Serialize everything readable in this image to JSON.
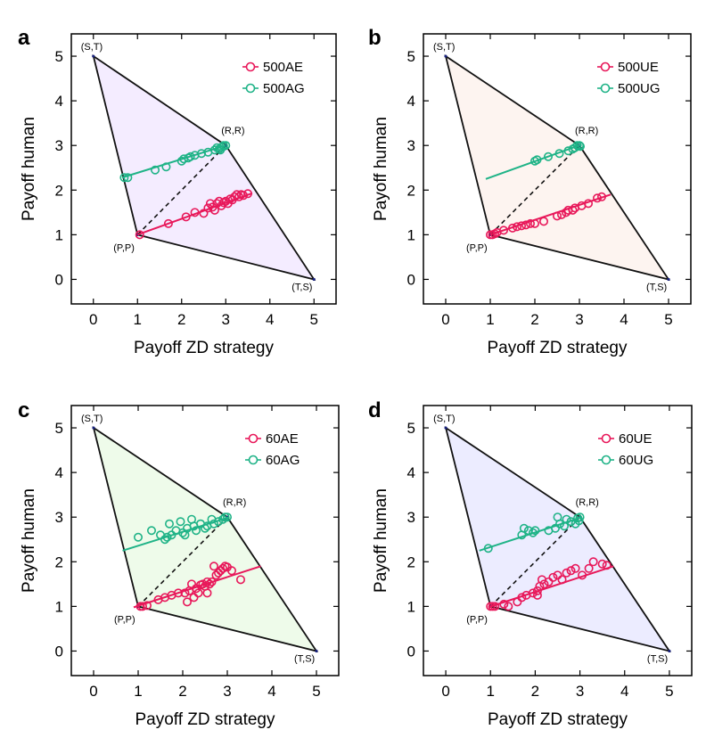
{
  "colors": {
    "ae_series": "#e8185a",
    "ag_series": "#1fb387",
    "boundary": "#111111",
    "fill_a": "#f4ecff",
    "fill_b": "#fdf4f0",
    "fill_c": "#eefbea",
    "fill_d": "#ececff"
  },
  "chart_data": [
    {
      "type": "scatter",
      "panel": "a",
      "xlabel": "Payoff ZD strategy",
      "ylabel": "Payoff human",
      "xlim": [
        -0.5,
        5.5
      ],
      "ylim": [
        -0.55,
        5.5
      ],
      "xticks": [
        0,
        1,
        2,
        3,
        4,
        5
      ],
      "yticks": [
        0,
        1,
        2,
        3,
        4,
        5
      ],
      "legend_position": "top-right",
      "fill_color": "#f4ecff",
      "vertices": [
        {
          "label": "(S,T)",
          "x": 0,
          "y": 5
        },
        {
          "label": "(R,R)",
          "x": 3,
          "y": 3
        },
        {
          "label": "(T,S)",
          "x": 5,
          "y": 0
        },
        {
          "label": "(P,P)",
          "x": 1,
          "y": 1
        }
      ],
      "series": [
        {
          "name": "500AE",
          "color": "#e8185a",
          "line": [
            [
              1.0,
              1.0
            ],
            [
              3.6,
              1.93
            ]
          ],
          "points": [
            [
              1.05,
              1.0
            ],
            [
              1.7,
              1.25
            ],
            [
              2.1,
              1.4
            ],
            [
              2.3,
              1.5
            ],
            [
              2.5,
              1.48
            ],
            [
              2.6,
              1.6
            ],
            [
              2.7,
              1.62
            ],
            [
              2.8,
              1.7
            ],
            [
              2.9,
              1.65
            ],
            [
              2.95,
              1.72
            ],
            [
              3.0,
              1.75
            ],
            [
              3.1,
              1.8
            ],
            [
              3.15,
              1.78
            ],
            [
              3.2,
              1.85
            ],
            [
              3.3,
              1.85
            ],
            [
              3.35,
              1.9
            ],
            [
              3.4,
              1.88
            ],
            [
              3.5,
              1.92
            ],
            [
              2.75,
              1.55
            ],
            [
              3.05,
              1.7
            ],
            [
              2.85,
              1.75
            ],
            [
              3.25,
              1.9
            ],
            [
              2.65,
              1.7
            ]
          ]
        },
        {
          "name": "500AG",
          "color": "#1fb387",
          "line": [
            [
              0.65,
              2.28
            ],
            [
              3.0,
              3.0
            ]
          ],
          "points": [
            [
              0.7,
              2.28
            ],
            [
              0.78,
              2.28
            ],
            [
              1.4,
              2.45
            ],
            [
              1.65,
              2.52
            ],
            [
              2.0,
              2.65
            ],
            [
              2.05,
              2.7
            ],
            [
              2.15,
              2.72
            ],
            [
              2.3,
              2.78
            ],
            [
              2.45,
              2.82
            ],
            [
              2.6,
              2.85
            ],
            [
              2.75,
              2.9
            ],
            [
              2.8,
              2.95
            ],
            [
              2.85,
              2.92
            ],
            [
              2.9,
              2.96
            ],
            [
              2.95,
              3.0
            ],
            [
              3.0,
              3.0
            ],
            [
              2.95,
              2.98
            ],
            [
              2.88,
              2.9
            ],
            [
              2.2,
              2.75
            ]
          ]
        }
      ]
    },
    {
      "type": "scatter",
      "panel": "b",
      "xlabel": "Payoff ZD strategy",
      "ylabel": "Payoff human",
      "xlim": [
        -0.5,
        5.5
      ],
      "ylim": [
        -0.55,
        5.5
      ],
      "xticks": [
        0,
        1,
        2,
        3,
        4,
        5
      ],
      "yticks": [
        0,
        1,
        2,
        3,
        4,
        5
      ],
      "legend_position": "top-right",
      "fill_color": "#fdf4f0",
      "vertices": [
        {
          "label": "(S,T)",
          "x": 0,
          "y": 5
        },
        {
          "label": "(R,R)",
          "x": 3,
          "y": 3
        },
        {
          "label": "(T,S)",
          "x": 5,
          "y": 0
        },
        {
          "label": "(P,P)",
          "x": 1,
          "y": 1
        }
      ],
      "series": [
        {
          "name": "500UE",
          "color": "#e8185a",
          "line": [
            [
              1.0,
              1.0
            ],
            [
              3.7,
              1.9
            ]
          ],
          "points": [
            [
              1.0,
              1.0
            ],
            [
              1.05,
              1.0
            ],
            [
              1.1,
              1.02
            ],
            [
              1.15,
              1.05
            ],
            [
              1.3,
              1.1
            ],
            [
              1.5,
              1.15
            ],
            [
              1.6,
              1.18
            ],
            [
              1.7,
              1.2
            ],
            [
              1.8,
              1.22
            ],
            [
              1.9,
              1.25
            ],
            [
              2.0,
              1.25
            ],
            [
              2.2,
              1.3
            ],
            [
              2.5,
              1.42
            ],
            [
              2.6,
              1.45
            ],
            [
              2.7,
              1.5
            ],
            [
              2.75,
              1.55
            ],
            [
              2.85,
              1.55
            ],
            [
              2.9,
              1.6
            ],
            [
              3.05,
              1.65
            ],
            [
              3.2,
              1.7
            ],
            [
              3.5,
              1.85
            ],
            [
              3.4,
              1.82
            ]
          ]
        },
        {
          "name": "500UG",
          "color": "#1fb387",
          "line": [
            [
              0.9,
              2.25
            ],
            [
              3.05,
              3.02
            ]
          ],
          "points": [
            [
              2.0,
              2.65
            ],
            [
              2.05,
              2.68
            ],
            [
              2.3,
              2.75
            ],
            [
              2.55,
              2.82
            ],
            [
              2.75,
              2.88
            ],
            [
              2.85,
              2.92
            ],
            [
              2.9,
              2.95
            ],
            [
              2.95,
              3.0
            ],
            [
              3.0,
              3.0
            ],
            [
              3.02,
              2.98
            ]
          ]
        }
      ]
    },
    {
      "type": "scatter",
      "panel": "c",
      "xlabel": "Payoff ZD strategy",
      "ylabel": "Payoff human",
      "xlim": [
        -0.5,
        5.5
      ],
      "ylim": [
        -0.55,
        5.5
      ],
      "xticks": [
        0,
        1,
        2,
        3,
        4,
        5
      ],
      "yticks": [
        0,
        1,
        2,
        3,
        4,
        5
      ],
      "legend_position": "top-right",
      "fill_color": "#eefbea",
      "vertices": [
        {
          "label": "(S,T)",
          "x": 0,
          "y": 5
        },
        {
          "label": "(R,R)",
          "x": 3,
          "y": 3
        },
        {
          "label": "(T,S)",
          "x": 5,
          "y": 0
        },
        {
          "label": "(P,P)",
          "x": 1,
          "y": 1
        }
      ],
      "series": [
        {
          "name": "60AE",
          "color": "#e8185a",
          "line": [
            [
              0.9,
              0.98
            ],
            [
              3.75,
              1.9
            ]
          ],
          "points": [
            [
              1.05,
              1.0
            ],
            [
              1.1,
              1.0
            ],
            [
              1.2,
              1.02
            ],
            [
              1.45,
              1.15
            ],
            [
              1.6,
              1.2
            ],
            [
              1.75,
              1.25
            ],
            [
              1.9,
              1.3
            ],
            [
              2.05,
              1.3
            ],
            [
              2.1,
              1.1
            ],
            [
              2.15,
              1.35
            ],
            [
              2.25,
              1.2
            ],
            [
              2.3,
              1.4
            ],
            [
              2.35,
              1.3
            ],
            [
              2.4,
              1.48
            ],
            [
              2.45,
              1.5
            ],
            [
              2.5,
              1.45
            ],
            [
              2.55,
              1.55
            ],
            [
              2.6,
              1.5
            ],
            [
              2.65,
              1.55
            ],
            [
              2.7,
              1.9
            ],
            [
              2.75,
              1.7
            ],
            [
              2.8,
              1.75
            ],
            [
              2.85,
              1.8
            ],
            [
              2.9,
              1.85
            ],
            [
              2.95,
              1.9
            ],
            [
              3.0,
              1.88
            ],
            [
              3.1,
              1.8
            ],
            [
              3.3,
              1.6
            ],
            [
              2.2,
              1.5
            ],
            [
              2.55,
              1.3
            ]
          ]
        },
        {
          "name": "60AG",
          "color": "#1fb387",
          "line": [
            [
              0.65,
              2.25
            ],
            [
              3.05,
              3.0
            ]
          ],
          "points": [
            [
              1.0,
              2.55
            ],
            [
              1.3,
              2.7
            ],
            [
              1.5,
              2.6
            ],
            [
              1.6,
              2.5
            ],
            [
              1.7,
              2.85
            ],
            [
              1.75,
              2.6
            ],
            [
              1.85,
              2.7
            ],
            [
              1.95,
              2.9
            ],
            [
              2.0,
              2.65
            ],
            [
              2.1,
              2.75
            ],
            [
              2.2,
              2.95
            ],
            [
              2.25,
              2.8
            ],
            [
              2.3,
              2.7
            ],
            [
              2.4,
              2.85
            ],
            [
              2.5,
              2.75
            ],
            [
              2.55,
              2.8
            ],
            [
              2.65,
              2.95
            ],
            [
              2.7,
              2.85
            ],
            [
              2.8,
              2.9
            ],
            [
              2.9,
              2.95
            ],
            [
              2.95,
              3.0
            ],
            [
              3.0,
              3.0
            ],
            [
              2.05,
              2.6
            ],
            [
              1.65,
              2.55
            ]
          ]
        }
      ]
    },
    {
      "type": "scatter",
      "panel": "d",
      "xlabel": "Payoff ZD strategy",
      "ylabel": "Payoff human",
      "xlim": [
        -0.5,
        5.5
      ],
      "ylim": [
        -0.55,
        5.5
      ],
      "xticks": [
        0,
        1,
        2,
        3,
        4,
        5
      ],
      "yticks": [
        0,
        1,
        2,
        3,
        4,
        5
      ],
      "legend_position": "top-right",
      "fill_color": "#ececff",
      "vertices": [
        {
          "label": "(S,T)",
          "x": 0,
          "y": 5
        },
        {
          "label": "(R,R)",
          "x": 3,
          "y": 3
        },
        {
          "label": "(T,S)",
          "x": 5,
          "y": 0
        },
        {
          "label": "(P,P)",
          "x": 1,
          "y": 1
        }
      ],
      "series": [
        {
          "name": "60UE",
          "color": "#e8185a",
          "line": [
            [
              0.95,
              0.98
            ],
            [
              3.75,
              1.9
            ]
          ],
          "points": [
            [
              1.0,
              1.0
            ],
            [
              1.05,
              1.0
            ],
            [
              1.1,
              1.0
            ],
            [
              1.3,
              1.05
            ],
            [
              1.4,
              1.0
            ],
            [
              1.6,
              1.1
            ],
            [
              1.7,
              1.2
            ],
            [
              1.8,
              1.25
            ],
            [
              1.95,
              1.3
            ],
            [
              2.05,
              1.35
            ],
            [
              2.1,
              1.45
            ],
            [
              2.15,
              1.6
            ],
            [
              2.2,
              1.5
            ],
            [
              2.3,
              1.55
            ],
            [
              2.4,
              1.65
            ],
            [
              2.5,
              1.7
            ],
            [
              2.6,
              1.6
            ],
            [
              2.7,
              1.75
            ],
            [
              2.8,
              1.8
            ],
            [
              2.9,
              1.85
            ],
            [
              3.05,
              1.7
            ],
            [
              3.2,
              1.85
            ],
            [
              3.3,
              2.0
            ],
            [
              3.5,
              1.95
            ],
            [
              3.6,
              1.92
            ],
            [
              2.05,
              1.25
            ]
          ]
        },
        {
          "name": "60UG",
          "color": "#1fb387",
          "line": [
            [
              0.75,
              2.25
            ],
            [
              3.05,
              3.0
            ]
          ],
          "points": [
            [
              0.95,
              2.3
            ],
            [
              1.7,
              2.6
            ],
            [
              1.75,
              2.75
            ],
            [
              1.85,
              2.7
            ],
            [
              1.95,
              2.65
            ],
            [
              2.0,
              2.7
            ],
            [
              2.3,
              2.7
            ],
            [
              2.45,
              2.75
            ],
            [
              2.55,
              2.85
            ],
            [
              2.5,
              3.0
            ],
            [
              2.65,
              2.8
            ],
            [
              2.7,
              2.95
            ],
            [
              2.8,
              2.9
            ],
            [
              2.9,
              2.85
            ],
            [
              2.95,
              2.98
            ],
            [
              3.0,
              3.0
            ],
            [
              2.98,
              2.92
            ]
          ]
        }
      ]
    }
  ]
}
